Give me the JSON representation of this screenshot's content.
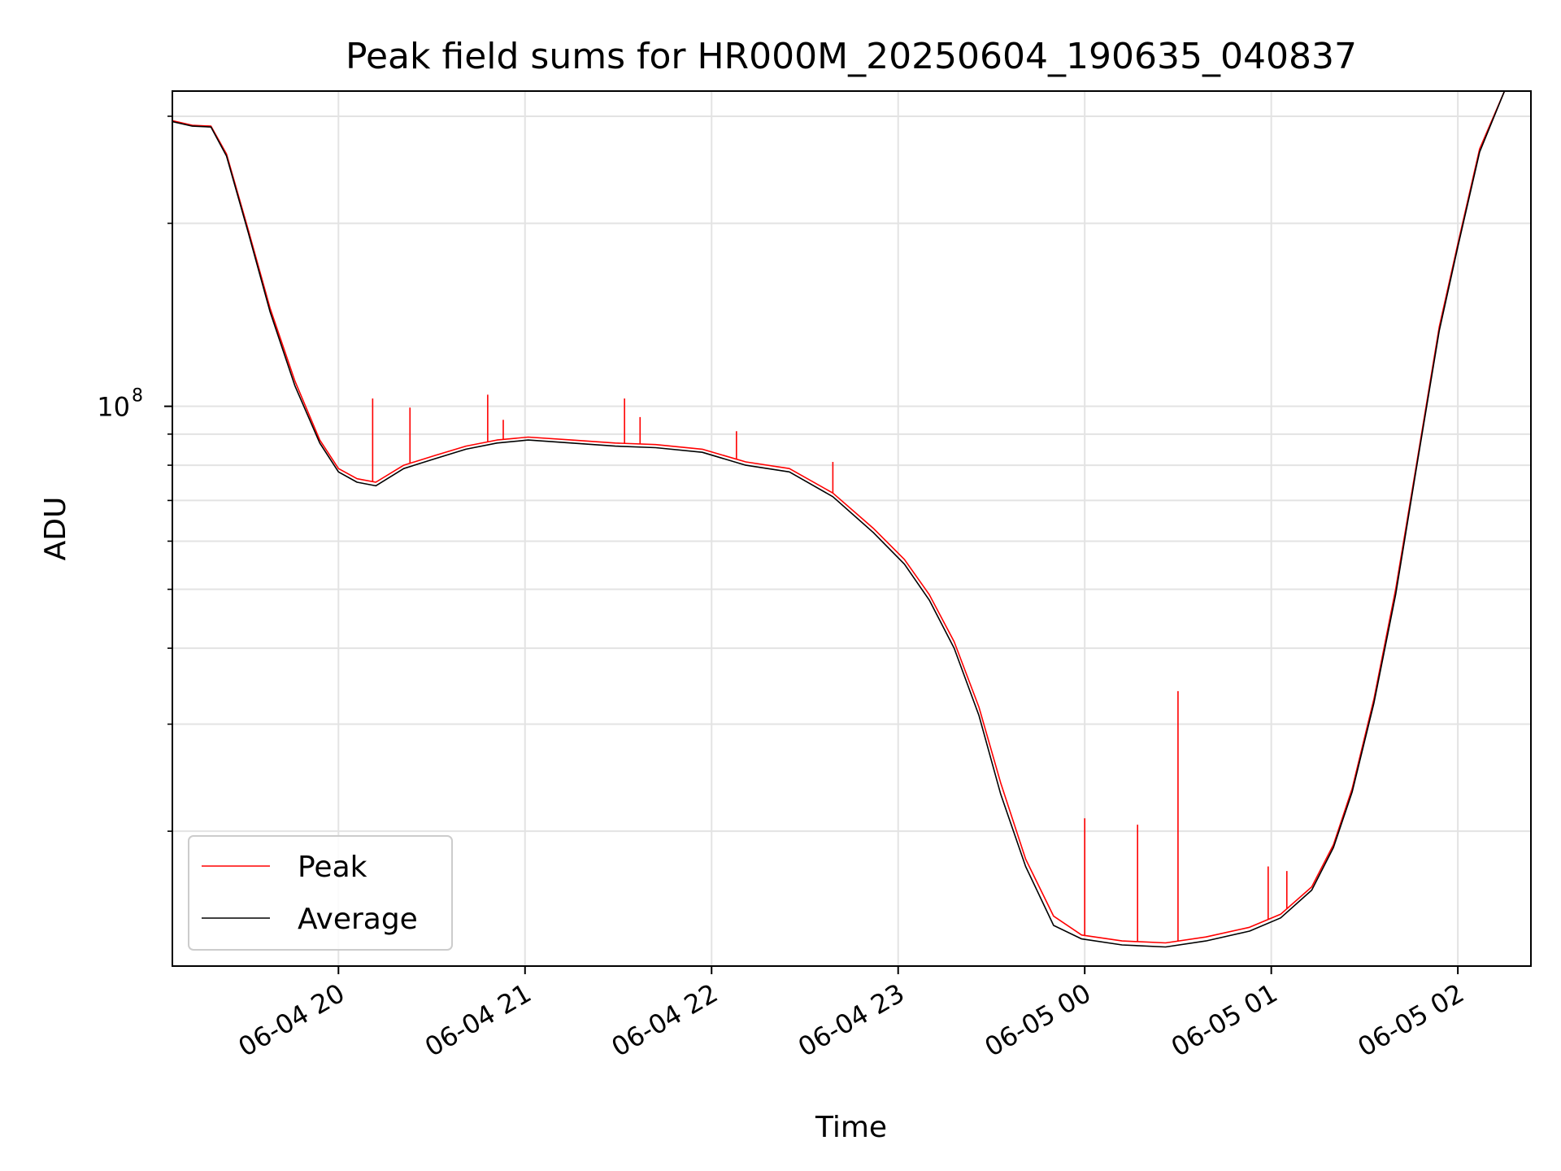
{
  "chart_data": {
    "type": "line",
    "title": "Peak field sums for HR000M_20250604_190635_040837",
    "xlabel": "Time",
    "ylabel": "ADU",
    "y_scale": "log",
    "ylim": [
      12000000,
      330000000
    ],
    "xlim": [
      "2025-06-04 19:06:35",
      "2025-06-05 02:23:30"
    ],
    "grid": true,
    "legend_position": "lower-left",
    "x_ticks": [
      {
        "t": "2025-06-04 20:00",
        "label": "06-04 20"
      },
      {
        "t": "2025-06-04 21:00",
        "label": "06-04 21"
      },
      {
        "t": "2025-06-04 22:00",
        "label": "06-04 22"
      },
      {
        "t": "2025-06-04 23:00",
        "label": "06-04 23"
      },
      {
        "t": "2025-06-05 00:00",
        "label": "06-05 00"
      },
      {
        "t": "2025-06-05 01:00",
        "label": "06-05 01"
      },
      {
        "t": "2025-06-05 02:00",
        "label": "06-05 02"
      }
    ],
    "y_major_ticks": [
      {
        "v": 100000000,
        "base": "10",
        "exp": "8"
      }
    ],
    "y_minor_ticks": [
      20000000,
      30000000,
      40000000,
      50000000,
      60000000,
      70000000,
      80000000,
      90000000,
      200000000,
      300000000
    ],
    "series": [
      {
        "name": "Peak",
        "color": "#ff0000",
        "points": [
          [
            "2025-06-04 19:06:35",
            295000000
          ],
          [
            "2025-06-04 19:13:00",
            290000000
          ],
          [
            "2025-06-04 19:19:00",
            289000000
          ],
          [
            "2025-06-04 19:24:00",
            260000000
          ],
          [
            "2025-06-04 19:31:00",
            195000000
          ],
          [
            "2025-06-04 19:38:00",
            145000000
          ],
          [
            "2025-06-04 19:46:00",
            110000000
          ],
          [
            "2025-06-04 19:54:00",
            88000000
          ],
          [
            "2025-06-04 20:00:00",
            79000000
          ],
          [
            "2025-06-04 20:06:00",
            76000000
          ],
          [
            "2025-06-04 20:12:00",
            75000000
          ],
          [
            "2025-06-04 20:21:00",
            80000000
          ],
          [
            "2025-06-04 20:31:00",
            83000000
          ],
          [
            "2025-06-04 20:41:00",
            86000000
          ],
          [
            "2025-06-04 20:51:00",
            88000000
          ],
          [
            "2025-06-04 21:01:00",
            89000000
          ],
          [
            "2025-06-04 21:15:00",
            88000000
          ],
          [
            "2025-06-04 21:29:00",
            87000000
          ],
          [
            "2025-06-04 21:42:00",
            86500000
          ],
          [
            "2025-06-04 21:57:00",
            85000000
          ],
          [
            "2025-06-04 22:11:00",
            81000000
          ],
          [
            "2025-06-04 22:25:00",
            79000000
          ],
          [
            "2025-06-04 22:39:00",
            72000000
          ],
          [
            "2025-06-04 22:52:00",
            63000000
          ],
          [
            "2025-06-04 23:02:00",
            56000000
          ],
          [
            "2025-06-04 23:10:00",
            49000000
          ],
          [
            "2025-06-04 23:18:00",
            41000000
          ],
          [
            "2025-06-04 23:26:00",
            32000000
          ],
          [
            "2025-06-04 23:33:00",
            24000000
          ],
          [
            "2025-06-04 23:41:00",
            18000000
          ],
          [
            "2025-06-04 23:50:00",
            14500000
          ],
          [
            "2025-06-04 23:59:00",
            13500000
          ],
          [
            "2025-06-05 00:12:00",
            13200000
          ],
          [
            "2025-06-05 00:26:00",
            13100000
          ],
          [
            "2025-06-05 00:39:00",
            13400000
          ],
          [
            "2025-06-05 00:53:00",
            13900000
          ],
          [
            "2025-06-05 01:03:00",
            14600000
          ],
          [
            "2025-06-05 01:13:00",
            16200000
          ],
          [
            "2025-06-05 01:20:00",
            19000000
          ],
          [
            "2025-06-05 01:26:00",
            23500000
          ],
          [
            "2025-06-05 01:33:00",
            33000000
          ],
          [
            "2025-06-05 01:40:00",
            50000000
          ],
          [
            "2025-06-05 01:47:00",
            82000000
          ],
          [
            "2025-06-05 01:54:00",
            135000000
          ],
          [
            "2025-06-05 02:00:00",
            185000000
          ],
          [
            "2025-06-05 02:07:00",
            265000000
          ],
          [
            "2025-06-05 02:15:00",
            330000000
          ]
        ],
        "spikes": [
          [
            "2025-06-04 20:11:00",
            103000000
          ],
          [
            "2025-06-04 20:23:00",
            99500000
          ],
          [
            "2025-06-04 20:48:00",
            104500000
          ],
          [
            "2025-06-04 20:53:00",
            95000000
          ],
          [
            "2025-06-04 21:32:00",
            103000000
          ],
          [
            "2025-06-04 21:37:00",
            96000000
          ],
          [
            "2025-06-04 22:08:00",
            91000000
          ],
          [
            "2025-06-04 22:39:00",
            81000000
          ],
          [
            "2025-06-05 00:00:00",
            21000000
          ],
          [
            "2025-06-05 00:17:00",
            20500000
          ],
          [
            "2025-06-05 00:30:00",
            34000000
          ],
          [
            "2025-06-05 00:59:00",
            17500000
          ],
          [
            "2025-06-05 01:05:00",
            17200000
          ]
        ]
      },
      {
        "name": "Average",
        "color": "#000000",
        "points": [
          [
            "2025-06-04 19:06:35",
            294000000
          ],
          [
            "2025-06-04 19:13:00",
            289000000
          ],
          [
            "2025-06-04 19:19:00",
            288000000
          ],
          [
            "2025-06-04 19:24:00",
            258000000
          ],
          [
            "2025-06-04 19:31:00",
            193000000
          ],
          [
            "2025-06-04 19:38:00",
            143000000
          ],
          [
            "2025-06-04 19:46:00",
            108000000
          ],
          [
            "2025-06-04 19:54:00",
            87000000
          ],
          [
            "2025-06-04 20:00:00",
            78000000
          ],
          [
            "2025-06-04 20:06:00",
            75000000
          ],
          [
            "2025-06-04 20:12:00",
            74000000
          ],
          [
            "2025-06-04 20:21:00",
            79000000
          ],
          [
            "2025-06-04 20:31:00",
            82000000
          ],
          [
            "2025-06-04 20:41:00",
            85000000
          ],
          [
            "2025-06-04 20:51:00",
            87000000
          ],
          [
            "2025-06-04 21:01:00",
            88000000
          ],
          [
            "2025-06-04 21:15:00",
            87000000
          ],
          [
            "2025-06-04 21:29:00",
            86000000
          ],
          [
            "2025-06-04 21:42:00",
            85500000
          ],
          [
            "2025-06-04 21:57:00",
            84000000
          ],
          [
            "2025-06-04 22:11:00",
            80000000
          ],
          [
            "2025-06-04 22:25:00",
            78000000
          ],
          [
            "2025-06-04 22:39:00",
            71000000
          ],
          [
            "2025-06-04 22:52:00",
            62000000
          ],
          [
            "2025-06-04 23:02:00",
            55000000
          ],
          [
            "2025-06-04 23:10:00",
            48000000
          ],
          [
            "2025-06-04 23:18:00",
            40000000
          ],
          [
            "2025-06-04 23:26:00",
            31000000
          ],
          [
            "2025-06-04 23:33:00",
            23000000
          ],
          [
            "2025-06-04 23:41:00",
            17500000
          ],
          [
            "2025-06-04 23:50:00",
            14000000
          ],
          [
            "2025-06-04 23:59:00",
            13300000
          ],
          [
            "2025-06-05 00:12:00",
            13000000
          ],
          [
            "2025-06-05 00:26:00",
            12900000
          ],
          [
            "2025-06-05 00:39:00",
            13200000
          ],
          [
            "2025-06-05 00:53:00",
            13700000
          ],
          [
            "2025-06-05 01:03:00",
            14400000
          ],
          [
            "2025-06-05 01:13:00",
            16000000
          ],
          [
            "2025-06-05 01:20:00",
            18800000
          ],
          [
            "2025-06-05 01:26:00",
            23200000
          ],
          [
            "2025-06-05 01:33:00",
            32500000
          ],
          [
            "2025-06-05 01:40:00",
            49000000
          ],
          [
            "2025-06-05 01:47:00",
            81000000
          ],
          [
            "2025-06-05 01:54:00",
            133000000
          ],
          [
            "2025-06-05 02:00:00",
            183000000
          ],
          [
            "2025-06-05 02:07:00",
            262000000
          ],
          [
            "2025-06-05 02:15:00",
            330000000
          ]
        ]
      }
    ]
  }
}
